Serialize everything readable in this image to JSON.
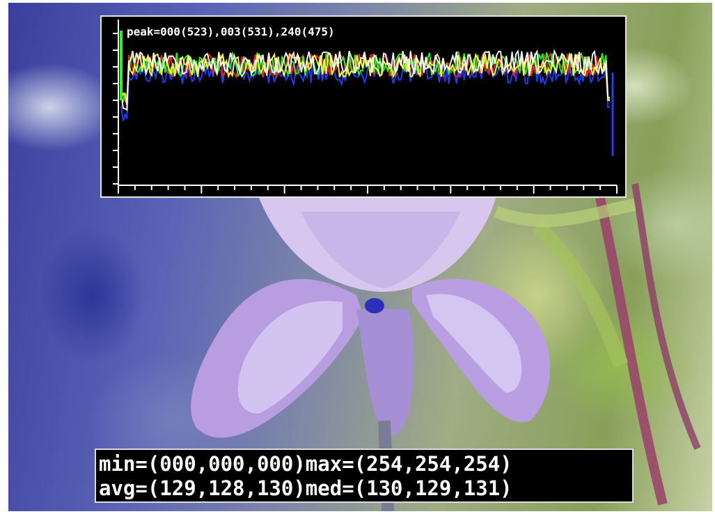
{
  "histogram": {
    "peak_text": "peak=000(523),003(531),240(475)",
    "colors": {
      "red": "#ff2020",
      "green": "#20ff20",
      "blue": "#2040ff",
      "white": "#ffffff",
      "yellow": "#ffff40"
    }
  },
  "stats": {
    "line1": "min=(000,000,000)max=(254,254,254)",
    "line2": "avg=(129,128,130)med=(130,129,131)"
  }
}
